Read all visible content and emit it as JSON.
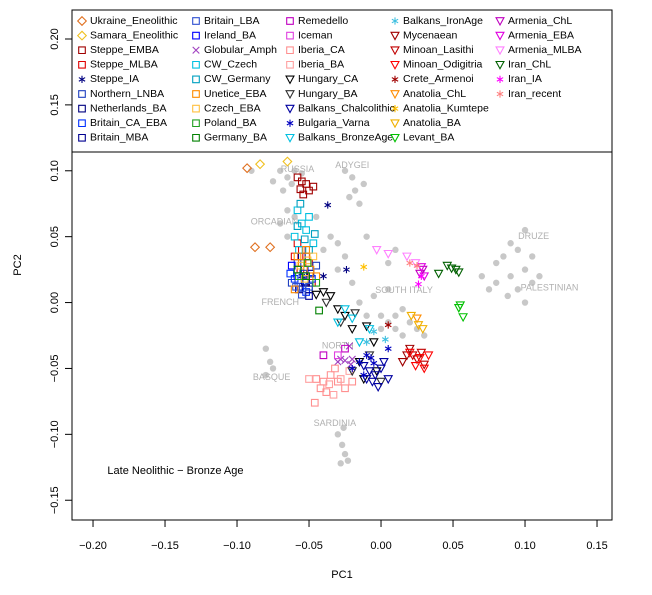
{
  "chart_data": {
    "type": "scatter",
    "xlabel": "PC1",
    "ylabel": "PC2",
    "annotation": "Late Neolithic − Bronze Age",
    "xlim": [
      -0.2146,
      0.1604
    ],
    "ylim": [
      -0.165,
      0.222
    ],
    "xticks": [
      {
        "value": -0.2,
        "label": "−0.20"
      },
      {
        "value": -0.15,
        "label": "−0.15"
      },
      {
        "value": -0.1,
        "label": "−0.10"
      },
      {
        "value": -0.05,
        "label": "−0.05"
      },
      {
        "value": 0,
        "label": "0.00"
      },
      {
        "value": 0.05,
        "label": "0.05"
      },
      {
        "value": 0.1,
        "label": "0.10"
      },
      {
        "value": 0.15,
        "label": "0.15"
      }
    ],
    "yticks": [
      {
        "value": -0.15,
        "label": "−0.15"
      },
      {
        "value": -0.1,
        "label": "−0.10"
      },
      {
        "value": -0.05,
        "label": "−0.05"
      },
      {
        "value": 0,
        "label": "0.00"
      },
      {
        "value": 0.05,
        "label": "0.05"
      },
      {
        "value": 0.1,
        "label": "0.10"
      },
      {
        "value": 0.15,
        "label": "0.15"
      },
      {
        "value": 0.2,
        "label": "0.20"
      }
    ],
    "legend": "top",
    "reference_points": {
      "color": "#c8c8c8",
      "x": [
        -0.07,
        -0.065,
        -0.06,
        -0.062,
        -0.068,
        -0.055,
        -0.075,
        -0.025,
        -0.02,
        -0.018,
        -0.015,
        -0.022,
        -0.012,
        -0.065,
        -0.07,
        -0.06,
        -0.065,
        -0.04,
        -0.035,
        -0.03,
        -0.025,
        -0.03,
        -0.02,
        -0.015,
        -0.005,
        0.0,
        0.005,
        0.01,
        0.015,
        0.02,
        0.025,
        0.03,
        0.01,
        0.0,
        -0.01,
        0.015,
        0.005,
        -0.08,
        -0.077,
        -0.075,
        -0.08,
        -0.03,
        -0.027,
        -0.025,
        -0.028,
        -0.023,
        -0.026,
        0.07,
        0.08,
        0.085,
        0.09,
        0.1,
        0.095,
        0.105,
        0.1,
        0.11,
        0.09,
        0.08,
        0.095,
        0.1,
        0.105,
        0.088,
        0.075,
        -0.09,
        -0.045,
        0.005,
        0.01,
        -0.01
      ],
      "y": [
        0.1,
        0.095,
        0.1,
        0.09,
        0.085,
        0.098,
        0.092,
        0.1,
        0.095,
        0.085,
        0.075,
        0.08,
        0.09,
        0.07,
        0.06,
        0.065,
        0.05,
        0.04,
        0.05,
        0.045,
        0.035,
        0.025,
        0.015,
        0.0,
        0.005,
        -0.01,
        -0.015,
        -0.02,
        -0.025,
        -0.015,
        -0.02,
        -0.025,
        -0.01,
        -0.02,
        -0.01,
        -0.005,
        0.01,
        -0.035,
        -0.045,
        -0.05,
        -0.055,
        -0.1,
        -0.108,
        -0.115,
        -0.122,
        -0.12,
        -0.095,
        0.02,
        0.03,
        0.035,
        0.045,
        0.055,
        0.04,
        0.035,
        0.025,
        0.02,
        0.02,
        0.015,
        0.01,
        0.0,
        0.015,
        0.005,
        0.01,
        0.1,
        0.065,
        0.03,
        0.04,
        0.05
      ]
    },
    "labels": [
      {
        "text": "RUSSIA",
        "x": -0.058,
        "y": 0.101
      },
      {
        "text": "ADYGEI",
        "x": -0.02,
        "y": 0.104
      },
      {
        "text": "ORCADIAN",
        "x": -0.074,
        "y": 0.061
      },
      {
        "text": "DRUZE",
        "x": 0.106,
        "y": 0.05
      },
      {
        "text": "FRENCH",
        "x": -0.07,
        "y": 0.0
      },
      {
        "text": "SOUTH ITALY",
        "x": 0.016,
        "y": 0.009
      },
      {
        "text": "PALESTINIAN",
        "x": 0.117,
        "y": 0.011
      },
      {
        "text": "NORTH",
        "x": -0.03,
        "y": -0.033
      },
      {
        "text": "BASQUE",
        "x": -0.076,
        "y": -0.057
      },
      {
        "text": "SARDINIA",
        "x": -0.032,
        "y": -0.092
      }
    ],
    "series": [
      {
        "name": "Ukraine_Eneolithic",
        "color": "#e07020",
        "marker": "diamond",
        "x": [
          -0.093,
          -0.0875,
          -0.077
        ],
        "y": [
          0.102,
          0.042,
          0.042
        ]
      },
      {
        "name": "Samara_Eneolithic",
        "color": "#f0c020",
        "marker": "diamond",
        "x": [
          -0.084,
          -0.065
        ],
        "y": [
          0.105,
          0.107
        ]
      },
      {
        "name": "Steppe_EMBA",
        "color": "#a00000",
        "marker": "square",
        "x": [
          -0.058,
          -0.055,
          -0.052,
          -0.056,
          -0.05,
          -0.054,
          -0.047
        ],
        "y": [
          0.095,
          0.092,
          0.09,
          0.086,
          0.085,
          0.082,
          0.088
        ]
      },
      {
        "name": "Steppe_MLBA",
        "color": "#e00000",
        "marker": "square",
        "x": [
          -0.058,
          -0.055,
          -0.052,
          -0.05,
          -0.056,
          -0.053,
          -0.048,
          -0.06
        ],
        "y": [
          0.045,
          0.04,
          0.035,
          0.03,
          0.025,
          0.02,
          0.015,
          0.035
        ]
      },
      {
        "name": "Steppe_IA",
        "color": "#000080",
        "marker": "star",
        "x": [
          -0.037,
          -0.055,
          -0.024,
          -0.04
        ],
        "y": [
          0.074,
          0.02,
          0.025,
          0.02
        ]
      },
      {
        "name": "Northern_LNBA",
        "color": "#2040c0",
        "marker": "square",
        "x": [
          -0.058,
          -0.054,
          -0.05,
          -0.062,
          -0.045
        ],
        "y": [
          0.03,
          0.022,
          0.01,
          0.015,
          0.028
        ]
      },
      {
        "name": "Netherlands_BA",
        "color": "#000080",
        "marker": "square",
        "x": [
          -0.055,
          -0.049,
          -0.052
        ],
        "y": [
          0.035,
          0.022,
          0.015
        ]
      },
      {
        "name": "Britain_CA_EBA",
        "color": "#0030ff",
        "marker": "square",
        "x": [
          -0.06,
          -0.056,
          -0.052,
          -0.063,
          -0.048
        ],
        "y": [
          0.018,
          0.012,
          0.008,
          0.022,
          0.018
        ]
      },
      {
        "name": "Britain_MBA",
        "color": "#000090",
        "marker": "square",
        "x": [
          -0.057,
          -0.053,
          -0.05
        ],
        "y": [
          0.01,
          0.016,
          0.005
        ]
      },
      {
        "name": "Britain_LBA",
        "color": "#3050d0",
        "marker": "square",
        "x": [
          -0.059,
          -0.055,
          -0.05
        ],
        "y": [
          0.012,
          0.006,
          0.012
        ]
      },
      {
        "name": "Ireland_BA",
        "color": "#0000ff",
        "marker": "square",
        "x": [
          -0.062,
          -0.058,
          -0.053
        ],
        "y": [
          0.028,
          0.02,
          0.025
        ]
      },
      {
        "name": "Globular_Amph",
        "color": "#a040c0",
        "marker": "x",
        "x": [
          -0.028,
          -0.025,
          -0.03,
          -0.02,
          -0.021,
          -0.022
        ],
        "y": [
          -0.043,
          -0.044,
          -0.045,
          -0.043,
          -0.047,
          -0.033
        ]
      },
      {
        "name": "CW_Czech",
        "color": "#00c0e0",
        "marker": "square",
        "x": [
          -0.058,
          -0.055,
          -0.052,
          -0.06,
          -0.05,
          -0.057,
          -0.047
        ],
        "y": [
          0.07,
          0.06,
          0.055,
          0.05,
          0.065,
          0.04,
          0.045
        ]
      },
      {
        "name": "CW_Germany",
        "color": "#00a0c0",
        "marker": "square",
        "x": [
          -0.056,
          -0.053,
          -0.05,
          -0.058,
          -0.046
        ],
        "y": [
          0.075,
          0.048,
          0.04,
          0.058,
          0.052
        ]
      },
      {
        "name": "Unetice_EBA",
        "color": "#ff8c00",
        "marker": "square",
        "x": [
          -0.055,
          -0.052,
          -0.058,
          -0.049,
          -0.045,
          -0.06
        ],
        "y": [
          0.03,
          0.04,
          0.035,
          0.025,
          0.02,
          0.01
        ]
      },
      {
        "name": "Czech_EBA",
        "color": "#ffc040",
        "marker": "square",
        "x": [
          -0.056,
          -0.051,
          -0.047,
          -0.053
        ],
        "y": [
          0.028,
          0.032,
          0.035,
          0.018
        ]
      },
      {
        "name": "Poland_BA",
        "color": "#20a020",
        "marker": "square",
        "x": [
          -0.057,
          -0.051,
          -0.045
        ],
        "y": [
          0.02,
          0.03,
          0.015
        ]
      },
      {
        "name": "Germany_BA",
        "color": "#008000",
        "marker": "square",
        "x": [
          -0.058,
          -0.043,
          -0.052
        ],
        "y": [
          0.025,
          -0.006,
          0.02
        ]
      },
      {
        "name": "Remedello",
        "color": "#c000c0",
        "marker": "square",
        "x": [
          -0.04,
          -0.025
        ],
        "y": [
          -0.04,
          -0.035
        ]
      },
      {
        "name": "Iceman",
        "color": "#e040e0",
        "marker": "square",
        "x": [
          -0.03
        ],
        "y": [
          -0.04
        ]
      },
      {
        "name": "Iberia_CA",
        "color": "#ff9090",
        "marker": "square",
        "x": [
          -0.045,
          -0.04,
          -0.035,
          -0.03,
          -0.025,
          -0.038,
          -0.046,
          -0.02,
          -0.032,
          -0.042
        ],
        "y": [
          -0.058,
          -0.06,
          -0.055,
          -0.06,
          -0.065,
          -0.068,
          -0.076,
          -0.06,
          -0.05,
          -0.065
        ]
      },
      {
        "name": "Iberia_BA",
        "color": "#ffa0a0",
        "marker": "square",
        "x": [
          -0.05,
          -0.036,
          -0.028,
          -0.022,
          -0.033
        ],
        "y": [
          -0.058,
          -0.062,
          -0.058,
          -0.052,
          -0.07
        ]
      },
      {
        "name": "Hungary_CA",
        "color": "#000000",
        "marker": "triangle",
        "x": [
          -0.045,
          -0.04,
          -0.035,
          -0.03,
          -0.025,
          -0.02,
          -0.01,
          -0.005,
          -0.015,
          -0.003,
          -0.012
        ],
        "y": [
          0.006,
          0.008,
          0.005,
          -0.005,
          -0.01,
          -0.02,
          -0.018,
          -0.03,
          -0.045,
          -0.052,
          -0.058
        ]
      },
      {
        "name": "Hungary_BA",
        "color": "#303030",
        "marker": "triangle",
        "x": [
          -0.038,
          -0.028,
          -0.018,
          -0.008,
          -0.02,
          0.0
        ],
        "y": [
          0.0,
          -0.015,
          -0.008,
          -0.04,
          -0.052,
          -0.06
        ]
      },
      {
        "name": "Balkans_Chalcolithic",
        "color": "#0000a0",
        "marker": "triangle",
        "x": [
          -0.012,
          -0.008,
          -0.004,
          0.0,
          -0.006,
          -0.002,
          -0.01,
          0.005,
          0.002
        ],
        "y": [
          -0.048,
          -0.052,
          -0.055,
          -0.05,
          -0.06,
          -0.064,
          -0.058,
          -0.058,
          -0.045
        ]
      },
      {
        "name": "Bulgaria_Varna",
        "color": "#0000c0",
        "marker": "star",
        "x": [
          -0.015,
          -0.01,
          -0.005,
          -0.012,
          -0.02,
          -0.007,
          0.005
        ],
        "y": [
          -0.045,
          -0.04,
          -0.046,
          -0.055,
          -0.05,
          -0.042,
          -0.035
        ]
      },
      {
        "name": "Balkans_BronzeAge",
        "color": "#00c0e0",
        "marker": "triangle",
        "x": [
          -0.025,
          -0.02,
          -0.008,
          -0.015,
          -0.03
        ],
        "y": [
          -0.005,
          -0.012,
          -0.02,
          -0.03,
          -0.015
        ]
      },
      {
        "name": "Balkans_IronAge",
        "color": "#40c0e0",
        "marker": "star",
        "x": [
          -0.005,
          -0.01,
          0.003
        ],
        "y": [
          -0.022,
          -0.03,
          -0.028
        ]
      },
      {
        "name": "Mycenaean",
        "color": "#a00000",
        "marker": "triangle",
        "x": [
          0.015,
          0.018,
          0.02
        ],
        "y": [
          -0.045,
          -0.04,
          -0.035
        ]
      },
      {
        "name": "Minoan_Lasithi",
        "color": "#c00000",
        "marker": "triangle",
        "x": [
          0.022,
          0.025,
          0.03,
          0.028
        ],
        "y": [
          -0.04,
          -0.043,
          -0.047,
          -0.038
        ]
      },
      {
        "name": "Minoan_Odigitria",
        "color": "#ff0000",
        "marker": "triangle",
        "x": [
          0.02,
          0.027,
          0.033,
          0.024,
          0.03
        ],
        "y": [
          -0.038,
          -0.042,
          -0.04,
          -0.048,
          -0.05
        ]
      },
      {
        "name": "Crete_Armenoi",
        "color": "#a00000",
        "marker": "star",
        "x": [
          0.005
        ],
        "y": [
          -0.017
        ]
      },
      {
        "name": "Anatolia_ChL",
        "color": "#ff8c00",
        "marker": "triangle",
        "x": [
          0.025
        ],
        "y": [
          -0.012
        ]
      },
      {
        "name": "Anatolia_Kumtepe",
        "color": "#ffc000",
        "marker": "star",
        "x": [
          -0.012
        ],
        "y": [
          0.027
        ]
      },
      {
        "name": "Anatolia_BA",
        "color": "#f0b000",
        "marker": "triangle",
        "x": [
          0.021,
          0.026,
          0.029
        ],
        "y": [
          -0.01,
          -0.017,
          -0.02
        ]
      },
      {
        "name": "Levant_BA",
        "color": "#00c000",
        "marker": "triangle",
        "x": [
          0.054,
          0.057,
          0.055
        ],
        "y": [
          -0.004,
          -0.011,
          -0.002
        ]
      },
      {
        "name": "Armenia_ChL",
        "color": "#c000c0",
        "marker": "triangle",
        "x": [
          0.027,
          0.029
        ],
        "y": [
          0.022,
          0.025
        ]
      },
      {
        "name": "Armenia_EBA",
        "color": "#e000e0",
        "marker": "triangle",
        "x": [
          0.03,
          0.028
        ],
        "y": [
          0.02,
          0.027
        ]
      },
      {
        "name": "Armenia_MLBA",
        "color": "#ff80ff",
        "marker": "triangle",
        "x": [
          -0.003,
          0.005,
          0.018,
          0.024
        ],
        "y": [
          0.04,
          0.037,
          0.035,
          0.03
        ]
      },
      {
        "name": "Iran_ChL",
        "color": "#006000",
        "marker": "triangle",
        "x": [
          0.04,
          0.049,
          0.052,
          0.046,
          0.054
        ],
        "y": [
          0.022,
          0.026,
          0.025,
          0.028,
          0.023
        ]
      },
      {
        "name": "Iran_IA",
        "color": "#ff00ff",
        "marker": "star",
        "x": [
          0.028,
          0.026
        ],
        "y": [
          0.02,
          0.014
        ]
      },
      {
        "name": "Iran_recent",
        "color": "#ff8080",
        "marker": "star",
        "x": [
          0.025,
          0.02
        ],
        "y": [
          0.028,
          0.03
        ]
      }
    ]
  }
}
